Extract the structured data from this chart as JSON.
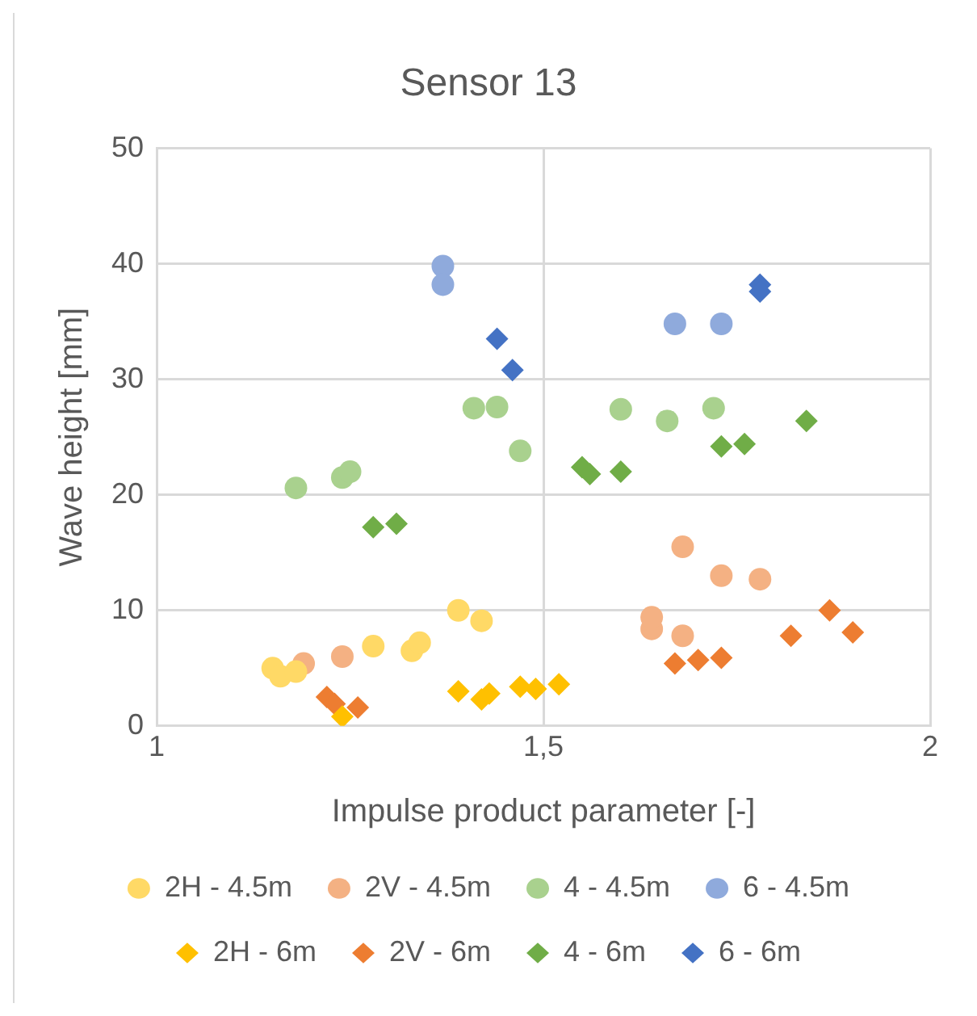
{
  "chart_data": {
    "type": "scatter",
    "title": "Sensor 13",
    "xlabel": "Impulse product parameter [-]",
    "ylabel": "Wave height [mm]",
    "xlim": [
      1,
      2
    ],
    "xticks": [
      {
        "value": 1,
        "label": "1"
      },
      {
        "value": 1.5,
        "label": "1,5"
      },
      {
        "value": 2,
        "label": "2"
      }
    ],
    "ylim": [
      0,
      50
    ],
    "yticks": [
      0,
      10,
      20,
      30,
      40,
      50
    ],
    "grid": true,
    "legend": "bottom",
    "series": [
      {
        "name": "2H - 4.5m",
        "color": "#ffd966",
        "marker": "circle",
        "x": [
          1.15,
          1.16,
          1.18,
          1.28,
          1.33,
          1.34,
          1.39,
          1.42
        ],
        "values": [
          5.0,
          4.3,
          4.7,
          6.9,
          6.5,
          7.2,
          10.0,
          9.1
        ]
      },
      {
        "name": "2V - 4.5m",
        "color": "#f4b183",
        "marker": "circle",
        "x": [
          1.19,
          1.24,
          1.64,
          1.64,
          1.68,
          1.68,
          1.73,
          1.78
        ],
        "values": [
          5.4,
          6.0,
          8.4,
          9.4,
          7.8,
          15.5,
          13.0,
          12.7
        ]
      },
      {
        "name": "4 - 4.5m",
        "color": "#a9d18e",
        "marker": "circle",
        "x": [
          1.18,
          1.24,
          1.25,
          1.41,
          1.44,
          1.47,
          1.6,
          1.66,
          1.72
        ],
        "values": [
          20.6,
          21.5,
          22.0,
          27.5,
          27.6,
          23.8,
          27.4,
          26.4,
          27.5
        ]
      },
      {
        "name": "6 - 4.5m",
        "color": "#8faadc",
        "marker": "circle",
        "x": [
          1.37,
          1.37,
          1.67,
          1.73
        ],
        "values": [
          39.8,
          38.2,
          34.8,
          34.8
        ]
      },
      {
        "name": "2H - 6m",
        "color": "#ffc000",
        "marker": "diamond",
        "x": [
          1.24,
          1.39,
          1.42,
          1.43,
          1.47,
          1.49,
          1.52
        ],
        "values": [
          0.8,
          3.0,
          2.3,
          2.8,
          3.4,
          3.2,
          3.6
        ]
      },
      {
        "name": "2V - 6m",
        "color": "#ed7d31",
        "marker": "diamond",
        "x": [
          1.22,
          1.23,
          1.26,
          1.67,
          1.7,
          1.73,
          1.82,
          1.87,
          1.9
        ],
        "values": [
          2.5,
          1.9,
          1.6,
          5.4,
          5.7,
          5.9,
          7.8,
          10.0,
          8.1
        ]
      },
      {
        "name": "4 - 6m",
        "color": "#70ad47",
        "marker": "diamond",
        "x": [
          1.28,
          1.31,
          1.55,
          1.56,
          1.6,
          1.73,
          1.76,
          1.84
        ],
        "values": [
          17.2,
          17.5,
          22.4,
          21.8,
          22.0,
          24.2,
          24.4,
          26.4
        ]
      },
      {
        "name": "6 - 6m",
        "color": "#4472c4",
        "marker": "diamond",
        "x": [
          1.44,
          1.46,
          1.78,
          1.78
        ],
        "values": [
          33.5,
          30.8,
          38.2,
          37.6
        ]
      }
    ]
  }
}
